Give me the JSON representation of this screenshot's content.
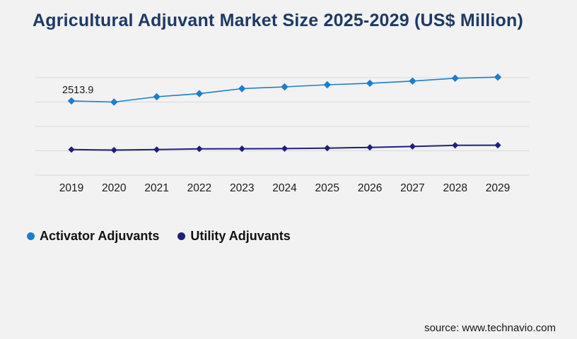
{
  "page": {
    "title": "Agricultural Adjuvant Market Size 2025-2029 (US$ Million)",
    "source_text": "source: www.technavio.com",
    "background_color": "#f2f2f3",
    "title_color": "#1e3a64"
  },
  "chart_data": {
    "type": "line",
    "title": "Agricultural Adjuvant Market Size 2025-2029 (US$ Million)",
    "xlabel": "",
    "ylabel": "",
    "x": [
      "2019",
      "2020",
      "2021",
      "2022",
      "2023",
      "2024",
      "2025",
      "2026",
      "2027",
      "2028",
      "2029"
    ],
    "series": [
      {
        "name": "Activator Adjuvants",
        "color": "#1b7ed0",
        "marker": "diamond",
        "values": [
          2513.9,
          2475,
          2655,
          2760,
          2930,
          2990,
          3060,
          3110,
          3185,
          3280,
          3320
        ]
      },
      {
        "name": "Utility Adjuvants",
        "color": "#201f7d",
        "marker": "diamond",
        "values": [
          865,
          850,
          865,
          890,
          895,
          900,
          915,
          940,
          970,
          1010,
          1015
        ]
      }
    ],
    "annotations": [
      {
        "text": "2513.9",
        "series_index": 0,
        "point_index": 0
      }
    ],
    "ylim": [
      0,
      3300
    ],
    "y_axis_labels_visible": false,
    "gridline_count": 5,
    "gridline_color": "#d9d9db",
    "axis_label_color": "#1a1a1a",
    "legend_position": "bottom-left",
    "grid": "horizontal-only"
  },
  "legend": {
    "items": [
      {
        "label": "Activator Adjuvants",
        "color": "#1b7ed0"
      },
      {
        "label": "Utility Adjuvants",
        "color": "#201f7d"
      }
    ]
  }
}
